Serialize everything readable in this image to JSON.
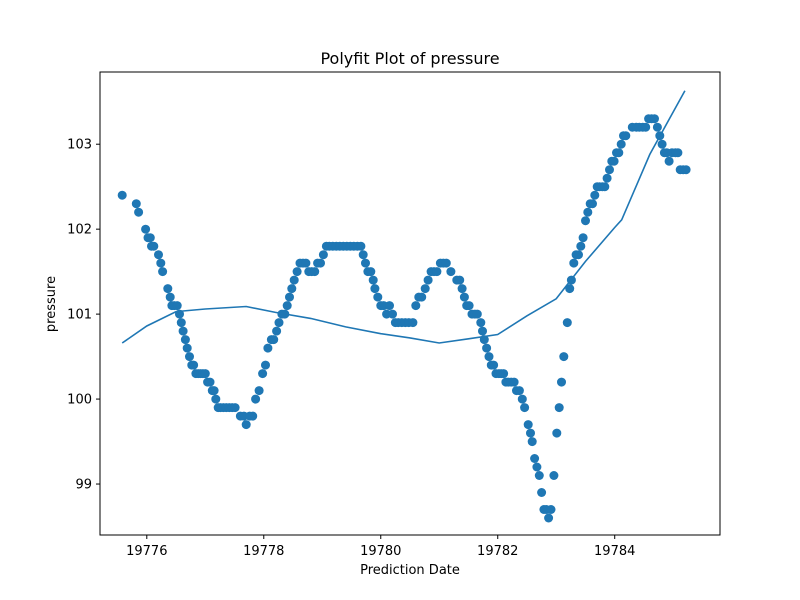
{
  "chart_data": {
    "type": "scatter",
    "title": "Polyfit Plot of pressure",
    "xlabel": "Prediction Date",
    "ylabel": "pressure",
    "xlim": [
      19775.2,
      19785.8
    ],
    "ylim": [
      98.4,
      103.85
    ],
    "x_ticks": [
      19776,
      19778,
      19780,
      19782,
      19784
    ],
    "x_tick_labels": [
      "19776",
      "19778",
      "19780",
      "19782",
      "19784"
    ],
    "y_ticks": [
      99,
      100,
      101,
      102,
      103
    ],
    "y_tick_labels": [
      "99",
      "100",
      "101",
      "102",
      "103"
    ],
    "grid": false,
    "legend": "none",
    "colors": {
      "series": "#1f77b4",
      "axes": "#000000",
      "background": "#ffffff"
    },
    "series": [
      {
        "kind": "scatter",
        "points": [
          [
            19775.58,
            102.4
          ],
          [
            19775.82,
            102.3
          ],
          [
            19775.86,
            102.2
          ],
          [
            19775.98,
            102.0
          ],
          [
            19776.02,
            101.9
          ],
          [
            19776.06,
            101.9
          ],
          [
            19776.08,
            101.8
          ],
          [
            19776.12,
            101.8
          ],
          [
            19776.2,
            101.7
          ],
          [
            19776.24,
            101.6
          ],
          [
            19776.27,
            101.5
          ],
          [
            19776.36,
            101.3
          ],
          [
            19776.4,
            101.2
          ],
          [
            19776.43,
            101.1
          ],
          [
            19776.47,
            101.1
          ],
          [
            19776.52,
            101.1
          ],
          [
            19776.56,
            101.0
          ],
          [
            19776.59,
            100.9
          ],
          [
            19776.62,
            100.8
          ],
          [
            19776.66,
            100.7
          ],
          [
            19776.69,
            100.6
          ],
          [
            19776.73,
            100.5
          ],
          [
            19776.77,
            100.4
          ],
          [
            19776.8,
            100.4
          ],
          [
            19776.84,
            100.3
          ],
          [
            19776.88,
            100.3
          ],
          [
            19776.92,
            100.3
          ],
          [
            19776.96,
            100.3
          ],
          [
            19777.0,
            100.3
          ],
          [
            19777.04,
            100.2
          ],
          [
            19777.08,
            100.2
          ],
          [
            19777.12,
            100.1
          ],
          [
            19777.15,
            100.1
          ],
          [
            19777.18,
            100.0
          ],
          [
            19777.22,
            99.9
          ],
          [
            19777.26,
            99.9
          ],
          [
            19777.31,
            99.9
          ],
          [
            19777.36,
            99.9
          ],
          [
            19777.41,
            99.9
          ],
          [
            19777.46,
            99.9
          ],
          [
            19777.51,
            99.9
          ],
          [
            19777.6,
            99.8
          ],
          [
            19777.66,
            99.8
          ],
          [
            19777.7,
            99.7
          ],
          [
            19777.76,
            99.8
          ],
          [
            19777.81,
            99.8
          ],
          [
            19777.86,
            100.0
          ],
          [
            19777.92,
            100.1
          ],
          [
            19777.98,
            100.3
          ],
          [
            19778.03,
            100.4
          ],
          [
            19778.07,
            100.6
          ],
          [
            19778.13,
            100.7
          ],
          [
            19778.17,
            100.7
          ],
          [
            19778.22,
            100.8
          ],
          [
            19778.26,
            100.9
          ],
          [
            19778.31,
            101.0
          ],
          [
            19778.36,
            101.0
          ],
          [
            19778.4,
            101.1
          ],
          [
            19778.44,
            101.2
          ],
          [
            19778.48,
            101.3
          ],
          [
            19778.52,
            101.4
          ],
          [
            19778.57,
            101.5
          ],
          [
            19778.62,
            101.6
          ],
          [
            19778.67,
            101.6
          ],
          [
            19778.72,
            101.6
          ],
          [
            19778.77,
            101.5
          ],
          [
            19778.82,
            101.5
          ],
          [
            19778.87,
            101.5
          ],
          [
            19778.92,
            101.6
          ],
          [
            19778.97,
            101.6
          ],
          [
            19779.02,
            101.7
          ],
          [
            19779.07,
            101.8
          ],
          [
            19779.12,
            101.8
          ],
          [
            19779.18,
            101.8
          ],
          [
            19779.24,
            101.8
          ],
          [
            19779.3,
            101.8
          ],
          [
            19779.36,
            101.8
          ],
          [
            19779.42,
            101.8
          ],
          [
            19779.48,
            101.8
          ],
          [
            19779.54,
            101.8
          ],
          [
            19779.6,
            101.8
          ],
          [
            19779.66,
            101.8
          ],
          [
            19779.7,
            101.7
          ],
          [
            19779.74,
            101.6
          ],
          [
            19779.78,
            101.5
          ],
          [
            19779.83,
            101.5
          ],
          [
            19779.87,
            101.4
          ],
          [
            19779.9,
            101.3
          ],
          [
            19779.95,
            101.2
          ],
          [
            19780.0,
            101.1
          ],
          [
            19780.05,
            101.1
          ],
          [
            19780.1,
            101.0
          ],
          [
            19780.15,
            101.1
          ],
          [
            19780.2,
            101.0
          ],
          [
            19780.25,
            100.9
          ],
          [
            19780.3,
            100.9
          ],
          [
            19780.36,
            100.9
          ],
          [
            19780.42,
            100.9
          ],
          [
            19780.48,
            100.9
          ],
          [
            19780.55,
            100.9
          ],
          [
            19780.6,
            101.1
          ],
          [
            19780.65,
            101.2
          ],
          [
            19780.7,
            101.2
          ],
          [
            19780.76,
            101.3
          ],
          [
            19780.81,
            101.4
          ],
          [
            19780.86,
            101.5
          ],
          [
            19780.91,
            101.5
          ],
          [
            19780.96,
            101.5
          ],
          [
            19781.02,
            101.6
          ],
          [
            19781.07,
            101.6
          ],
          [
            19781.12,
            101.6
          ],
          [
            19781.2,
            101.5
          ],
          [
            19781.3,
            101.4
          ],
          [
            19781.35,
            101.4
          ],
          [
            19781.39,
            101.3
          ],
          [
            19781.43,
            101.2
          ],
          [
            19781.47,
            101.1
          ],
          [
            19781.51,
            101.1
          ],
          [
            19781.56,
            101.0
          ],
          [
            19781.61,
            101.0
          ],
          [
            19781.65,
            101.0
          ],
          [
            19781.71,
            100.9
          ],
          [
            19781.74,
            100.8
          ],
          [
            19781.77,
            100.7
          ],
          [
            19781.81,
            100.6
          ],
          [
            19781.85,
            100.5
          ],
          [
            19781.89,
            100.4
          ],
          [
            19781.93,
            100.4
          ],
          [
            19781.97,
            100.3
          ],
          [
            19782.02,
            100.3
          ],
          [
            19782.06,
            100.3
          ],
          [
            19782.1,
            100.3
          ],
          [
            19782.14,
            100.2
          ],
          [
            19782.18,
            100.2
          ],
          [
            19782.23,
            100.2
          ],
          [
            19782.28,
            100.2
          ],
          [
            19782.32,
            100.1
          ],
          [
            19782.37,
            100.1
          ],
          [
            19782.42,
            100.0
          ],
          [
            19782.46,
            99.9
          ],
          [
            19782.52,
            99.7
          ],
          [
            19782.56,
            99.6
          ],
          [
            19782.59,
            99.5
          ],
          [
            19782.63,
            99.3
          ],
          [
            19782.67,
            99.2
          ],
          [
            19782.71,
            99.1
          ],
          [
            19782.75,
            98.9
          ],
          [
            19782.79,
            98.7
          ],
          [
            19782.83,
            98.7
          ],
          [
            19782.87,
            98.6
          ],
          [
            19782.91,
            98.7
          ],
          [
            19782.96,
            99.1
          ],
          [
            19783.01,
            99.6
          ],
          [
            19783.05,
            99.9
          ],
          [
            19783.09,
            100.2
          ],
          [
            19783.13,
            100.5
          ],
          [
            19783.19,
            100.9
          ],
          [
            19783.23,
            101.3
          ],
          [
            19783.26,
            101.4
          ],
          [
            19783.3,
            101.6
          ],
          [
            19783.34,
            101.7
          ],
          [
            19783.38,
            101.7
          ],
          [
            19783.42,
            101.8
          ],
          [
            19783.46,
            101.9
          ],
          [
            19783.5,
            102.1
          ],
          [
            19783.54,
            102.2
          ],
          [
            19783.58,
            102.3
          ],
          [
            19783.62,
            102.3
          ],
          [
            19783.66,
            102.4
          ],
          [
            19783.7,
            102.5
          ],
          [
            19783.74,
            102.5
          ],
          [
            19783.79,
            102.5
          ],
          [
            19783.83,
            102.5
          ],
          [
            19783.87,
            102.6
          ],
          [
            19783.91,
            102.7
          ],
          [
            19783.95,
            102.8
          ],
          [
            19783.99,
            102.8
          ],
          [
            19784.03,
            102.9
          ],
          [
            19784.07,
            102.9
          ],
          [
            19784.11,
            103.0
          ],
          [
            19784.15,
            103.1
          ],
          [
            19784.19,
            103.1
          ],
          [
            19784.3,
            103.2
          ],
          [
            19784.37,
            103.2
          ],
          [
            19784.42,
            103.2
          ],
          [
            19784.48,
            103.2
          ],
          [
            19784.53,
            103.2
          ],
          [
            19784.58,
            103.3
          ],
          [
            19784.63,
            103.3
          ],
          [
            19784.68,
            103.3
          ],
          [
            19784.73,
            103.2
          ],
          [
            19784.77,
            103.1
          ],
          [
            19784.81,
            103.0
          ],
          [
            19784.85,
            102.9
          ],
          [
            19784.89,
            102.9
          ],
          [
            19784.93,
            102.8
          ],
          [
            19784.98,
            102.9
          ],
          [
            19785.04,
            102.9
          ],
          [
            19785.08,
            102.9
          ],
          [
            19785.12,
            102.7
          ],
          [
            19785.17,
            102.7
          ],
          [
            19785.22,
            102.7
          ]
        ]
      },
      {
        "kind": "line",
        "points": [
          [
            19775.58,
            100.66
          ],
          [
            19776.0,
            100.86
          ],
          [
            19776.5,
            101.03
          ],
          [
            19777.0,
            101.06
          ],
          [
            19777.7,
            101.09
          ],
          [
            19778.2,
            101.02
          ],
          [
            19778.8,
            100.95
          ],
          [
            19779.4,
            100.85
          ],
          [
            19780.0,
            100.77
          ],
          [
            19780.5,
            100.72
          ],
          [
            19781.0,
            100.66
          ],
          [
            19781.5,
            100.71
          ],
          [
            19782.0,
            100.76
          ],
          [
            19782.5,
            100.98
          ],
          [
            19783.0,
            101.18
          ],
          [
            19783.5,
            101.62
          ],
          [
            19784.0,
            102.02
          ],
          [
            19784.12,
            102.11
          ],
          [
            19784.6,
            102.88
          ],
          [
            19785.2,
            103.63
          ]
        ]
      }
    ]
  }
}
